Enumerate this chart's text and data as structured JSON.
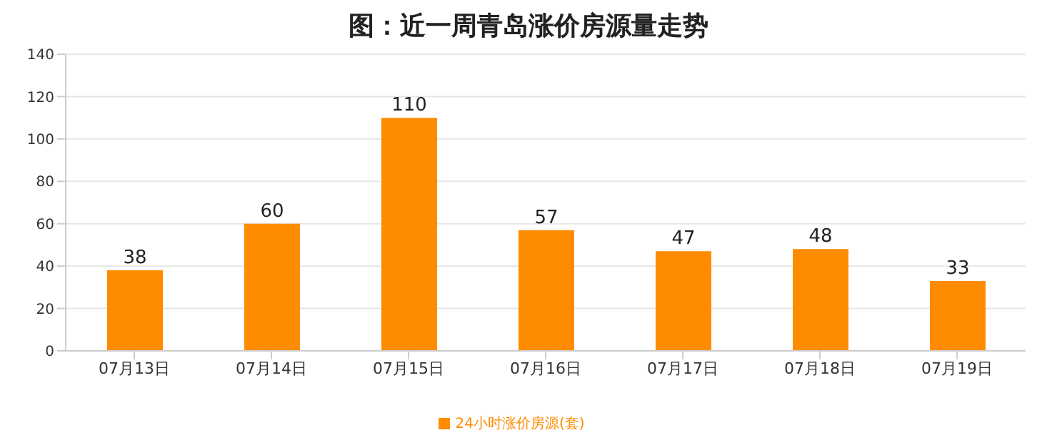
{
  "chart_data": {
    "type": "bar",
    "title": "图：近一周青岛涨价房源量走势",
    "categories": [
      "07月13日",
      "07月14日",
      "07月15日",
      "07月16日",
      "07月17日",
      "07月18日",
      "07月19日"
    ],
    "series": [
      {
        "name": "24小时涨价房源(套)",
        "color": "#ff8c00",
        "values": [
          38,
          60,
          110,
          57,
          47,
          48,
          33
        ]
      }
    ],
    "ylim": [
      0,
      140
    ],
    "yticks": [
      0,
      20,
      40,
      60,
      80,
      100,
      120,
      140
    ],
    "grid": "y",
    "legend": "bottom",
    "data_labels": true
  }
}
